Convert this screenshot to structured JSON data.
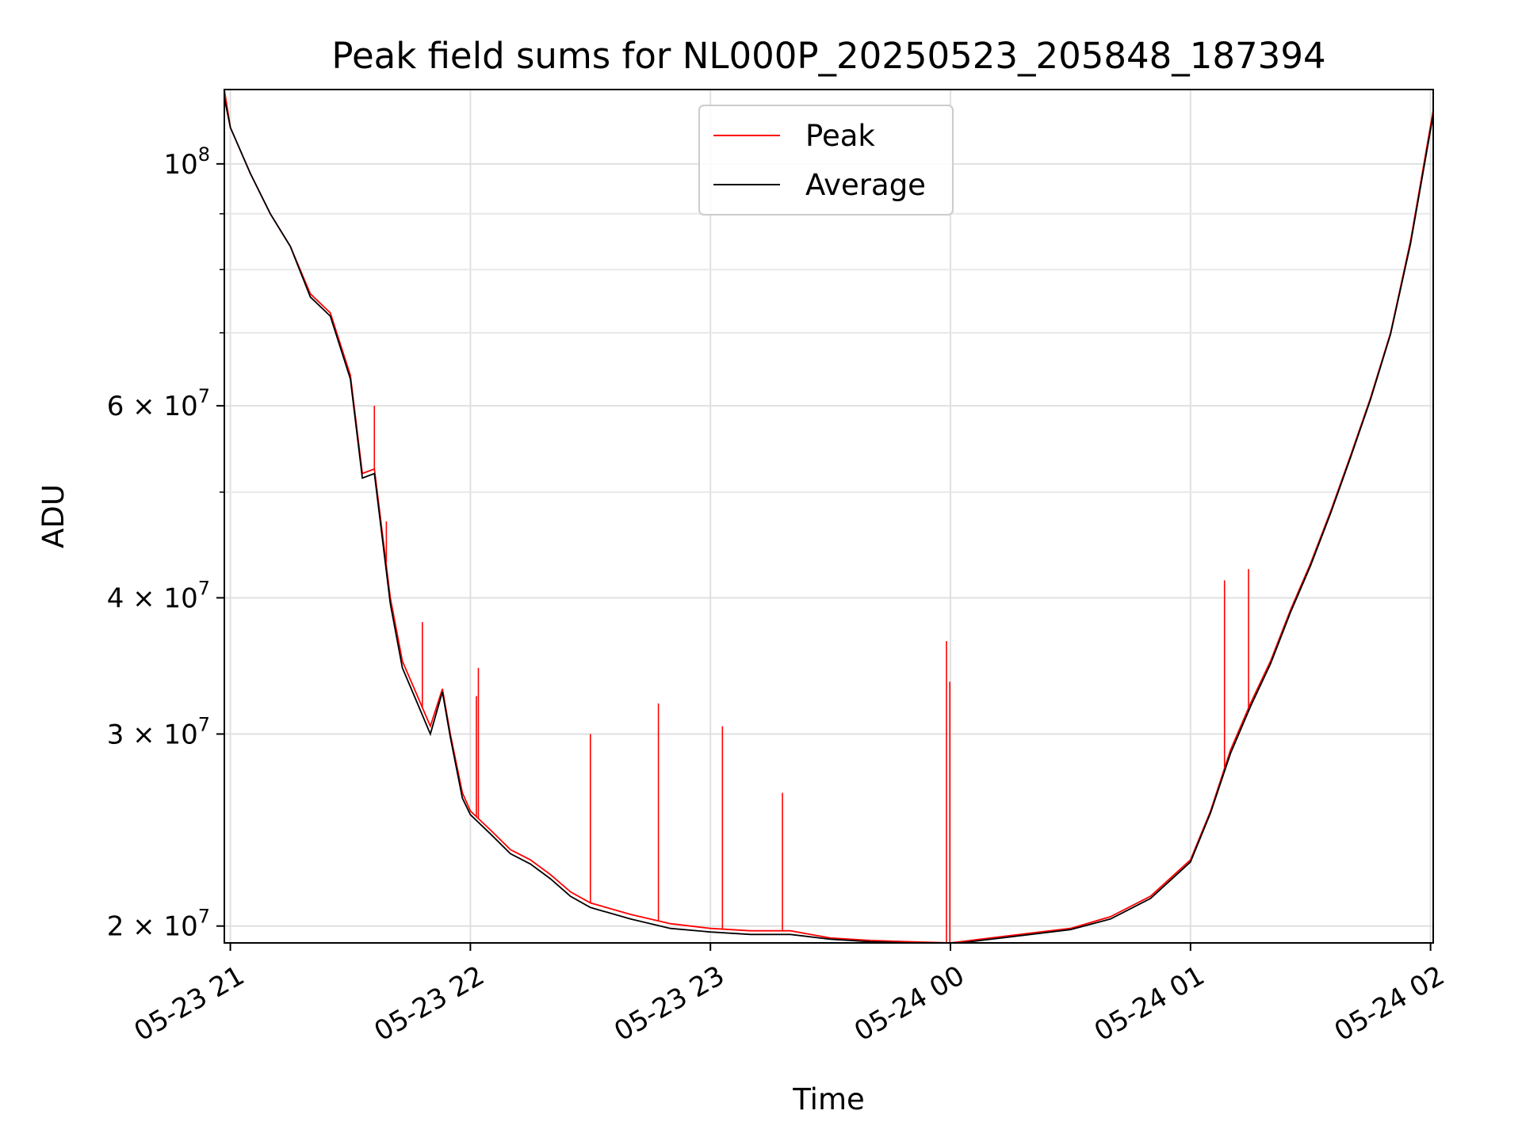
{
  "chart_data": {
    "type": "line",
    "title": "Peak field sums for NL000P_20250523_205848_187394",
    "xlabel": "Time",
    "ylabel": "ADU",
    "y_scale": "log",
    "ylim": [
      19300000,
      117000000
    ],
    "xlim": [
      "05-23 20:58:30",
      "05-24 02:00:40"
    ],
    "grid": true,
    "legend_position": "upper center",
    "x_ticks": [
      {
        "value": "05-23 21:00",
        "label": "05-23 21"
      },
      {
        "value": "05-23 22:00",
        "label": "05-23 22"
      },
      {
        "value": "05-23 23:00",
        "label": "05-23 23"
      },
      {
        "value": "05-24 00:00",
        "label": "05-24 00"
      },
      {
        "value": "05-24 01:00",
        "label": "05-24 01"
      },
      {
        "value": "05-24 02:00",
        "label": "05-24 02"
      }
    ],
    "y_ticks_major": [
      {
        "value": 100000000,
        "base": "10",
        "exp": "8"
      },
      {
        "value": 60000000,
        "base": "6 × 10",
        "exp": "7"
      },
      {
        "value": 40000000,
        "base": "4 × 10",
        "exp": "7"
      },
      {
        "value": 30000000,
        "base": "3 × 10",
        "exp": "7"
      },
      {
        "value": 20000000,
        "base": "2 × 10",
        "exp": "7"
      }
    ],
    "y_ticks_minor": [
      90000000,
      80000000,
      70000000,
      50000000
    ],
    "x": [
      "05-23 20:58:30",
      "05-23 21:00",
      "05-23 21:05",
      "05-23 21:10",
      "05-23 21:15",
      "05-23 21:20",
      "05-23 21:25",
      "05-23 21:30",
      "05-23 21:33",
      "05-23 21:36",
      "05-23 21:40",
      "05-23 21:43",
      "05-23 21:46",
      "05-23 21:50",
      "05-23 21:53",
      "05-23 21:55",
      "05-23 21:58",
      "05-23 22:00",
      "05-23 22:05",
      "05-23 22:10",
      "05-23 22:15",
      "05-23 22:20",
      "05-23 22:25",
      "05-23 22:30",
      "05-23 22:40",
      "05-23 22:50",
      "05-23 23:00",
      "05-23 23:10",
      "05-23 23:20",
      "05-23 23:30",
      "05-23 23:40",
      "05-23 23:50",
      "05-24 00:00",
      "05-24 00:10",
      "05-24 00:20",
      "05-24 00:30",
      "05-24 00:40",
      "05-24 00:50",
      "05-24 01:00",
      "05-24 01:05",
      "05-24 01:10",
      "05-24 01:15",
      "05-24 01:20",
      "05-24 01:25",
      "05-24 01:30",
      "05-24 01:35",
      "05-24 01:40",
      "05-24 01:45",
      "05-24 01:50",
      "05-24 01:55",
      "05-24 02:00:40"
    ],
    "series": [
      {
        "name": "Peak",
        "color": "#ff0000",
        "values": [
          117000000,
          108000000,
          98000000,
          90000000,
          84000000,
          76000000,
          73000000,
          64000000,
          52000000,
          52500000,
          40000000,
          35000000,
          33000000,
          30500000,
          33000000,
          30000000,
          26500000,
          25500000,
          24500000,
          23500000,
          23000000,
          22300000,
          21500000,
          21000000,
          20500000,
          20100000,
          19900000,
          19800000,
          19800000,
          19500000,
          19400000,
          19350000,
          19300000,
          19500000,
          19700000,
          19900000,
          20400000,
          21300000,
          23000000,
          25500000,
          29000000,
          32000000,
          35000000,
          39000000,
          43000000,
          48000000,
          54000000,
          61000000,
          70000000,
          85000000,
          112000000
        ],
        "spikes": [
          {
            "x": "05-23 22:01:30",
            "y": 32500000
          },
          {
            "x": "05-23 22:02",
            "y": 34500000
          },
          {
            "x": "05-23 22:30",
            "y": 30000000
          },
          {
            "x": "05-23 22:47",
            "y": 32000000
          },
          {
            "x": "05-23 23:03",
            "y": 30500000
          },
          {
            "x": "05-23 23:18",
            "y": 26500000
          },
          {
            "x": "05-23 23:59",
            "y": 36500000
          },
          {
            "x": "05-23 23:59:50",
            "y": 33500000
          },
          {
            "x": "05-24 01:08:30",
            "y": 41500000
          },
          {
            "x": "05-24 01:14:30",
            "y": 42500000
          },
          {
            "x": "05-23 21:39",
            "y": 47000000
          },
          {
            "x": "05-23 21:36",
            "y": 60000000
          },
          {
            "x": "05-23 21:48",
            "y": 38000000
          }
        ]
      },
      {
        "name": "Average",
        "color": "#000000",
        "values": [
          115000000,
          108000000,
          98000000,
          90000000,
          84000000,
          75500000,
          72500000,
          63500000,
          51500000,
          52000000,
          39500000,
          34500000,
          32500000,
          30000000,
          32800000,
          29800000,
          26200000,
          25300000,
          24300000,
          23300000,
          22800000,
          22100000,
          21300000,
          20800000,
          20300000,
          19900000,
          19750000,
          19650000,
          19650000,
          19450000,
          19350000,
          19300000,
          19250000,
          19450000,
          19650000,
          19850000,
          20300000,
          21200000,
          22900000,
          25400000,
          28800000,
          31800000,
          34800000,
          38800000,
          42800000,
          47800000,
          53800000,
          60800000,
          69800000,
          84500000,
          111000000
        ]
      }
    ]
  }
}
